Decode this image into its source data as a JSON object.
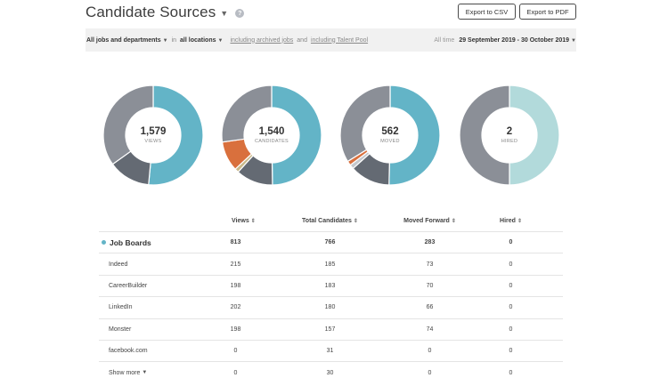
{
  "header": {
    "title": "Candidate Sources",
    "help_glyph": "?",
    "export_csv": "Export to CSV",
    "export_pdf": "Export to PDF"
  },
  "filters": {
    "jobs": "All jobs and departments",
    "in_text": "in",
    "locations": "all locations",
    "archived": "including archived jobs",
    "and_text": "and",
    "talent_pool": "including Talent Pool",
    "time_label": "All time",
    "date_range": "29 September 2019 - 30 October 2019"
  },
  "colors": {
    "teal": "#63b4c7",
    "gray": "#8b8f97",
    "dark_gray": "#646a73",
    "orange": "#d9703d",
    "light_teal": "#b2dadb",
    "light_gray": "#c4c8cd"
  },
  "donuts": [
    {
      "value": "1,579",
      "label": "VIEWS",
      "segments": [
        {
          "value": 813,
          "color": "#63b4c7"
        },
        {
          "value": 215,
          "color": "#646a73"
        },
        {
          "value": 551,
          "color": "#8b8f97"
        }
      ]
    },
    {
      "value": "1,540",
      "label": "CANDIDATES",
      "segments": [
        {
          "value": 766,
          "color": "#63b4c7"
        },
        {
          "value": 185,
          "color": "#646a73"
        },
        {
          "value": 20,
          "color": "#c9b98a"
        },
        {
          "value": 150,
          "color": "#d9703d"
        },
        {
          "value": 419,
          "color": "#8b8f97"
        }
      ]
    },
    {
      "value": "562",
      "label": "MOVED",
      "segments": [
        {
          "value": 283,
          "color": "#63b4c7"
        },
        {
          "value": 73,
          "color": "#646a73"
        },
        {
          "value": 8,
          "color": "#c4c8cd"
        },
        {
          "value": 8,
          "color": "#d9703d"
        },
        {
          "value": 190,
          "color": "#8b8f97"
        }
      ]
    },
    {
      "value": "2",
      "label": "HIRED",
      "segments": [
        {
          "value": 1,
          "color": "#b2dadb"
        },
        {
          "value": 1,
          "color": "#8b8f97"
        }
      ]
    }
  ],
  "table": {
    "headers": [
      "Views",
      "Total Candidates",
      "Moved Forward",
      "Hired"
    ],
    "group": {
      "name": "Job Boards",
      "views": "813",
      "candidates": "766",
      "moved": "283",
      "hired": "0"
    },
    "rows": [
      {
        "name": "Indeed",
        "views": "215",
        "candidates": "185",
        "moved": "73",
        "hired": "0"
      },
      {
        "name": "CareerBuilder",
        "views": "198",
        "candidates": "183",
        "moved": "70",
        "hired": "0"
      },
      {
        "name": "LinkedIn",
        "views": "202",
        "candidates": "180",
        "moved": "66",
        "hired": "0"
      },
      {
        "name": "Monster",
        "views": "198",
        "candidates": "157",
        "moved": "74",
        "hired": "0"
      },
      {
        "name": "facebook.com",
        "views": "0",
        "candidates": "31",
        "moved": "0",
        "hired": "0"
      },
      {
        "name": "Show more",
        "views": "0",
        "candidates": "30",
        "moved": "0",
        "hired": "0"
      }
    ]
  }
}
